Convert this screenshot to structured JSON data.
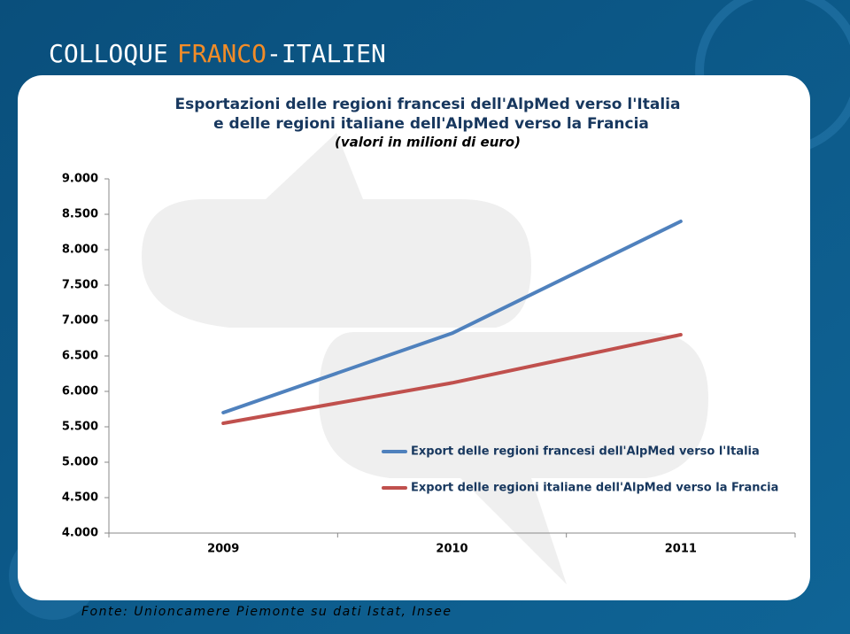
{
  "header": {
    "part1": "COLLOQUE",
    "part2": "FRANCO",
    "part3": "-ITALIEN"
  },
  "chart_data": {
    "type": "line",
    "title": [
      "Esportazioni delle regioni francesi dell'AlpMed verso l'Italia",
      "e delle regioni italiane dell'AlpMed verso la Francia"
    ],
    "subtitle": "(valori in milioni di euro)",
    "categories": [
      "2009",
      "2010",
      "2011"
    ],
    "series": [
      {
        "name": "Export delle regioni francesi dell'AlpMed verso l'Italia",
        "color": "#4f81bd",
        "values": [
          5700,
          6820,
          8400
        ]
      },
      {
        "name": "Export delle regioni italiane dell'AlpMed verso la Francia",
        "color": "#c0504d",
        "values": [
          5550,
          6120,
          6800
        ]
      }
    ],
    "ylim": [
      4000,
      9000
    ],
    "yticks": [
      {
        "value": 4000,
        "label": "4.000"
      },
      {
        "value": 4500,
        "label": "4.500"
      },
      {
        "value": 5000,
        "label": "5.000"
      },
      {
        "value": 5500,
        "label": "5.500"
      },
      {
        "value": 6000,
        "label": "6.000"
      },
      {
        "value": 6500,
        "label": "6.500"
      },
      {
        "value": 7000,
        "label": "7.000"
      },
      {
        "value": 7500,
        "label": "7.500"
      },
      {
        "value": 8000,
        "label": "8.000"
      },
      {
        "value": 8500,
        "label": "8.500"
      },
      {
        "value": 9000,
        "label": "9.000"
      }
    ],
    "legend": "right",
    "grid": false
  },
  "footer": {
    "source": "Fonte: Unioncamere Piemonte su dati Istat, Insee"
  }
}
